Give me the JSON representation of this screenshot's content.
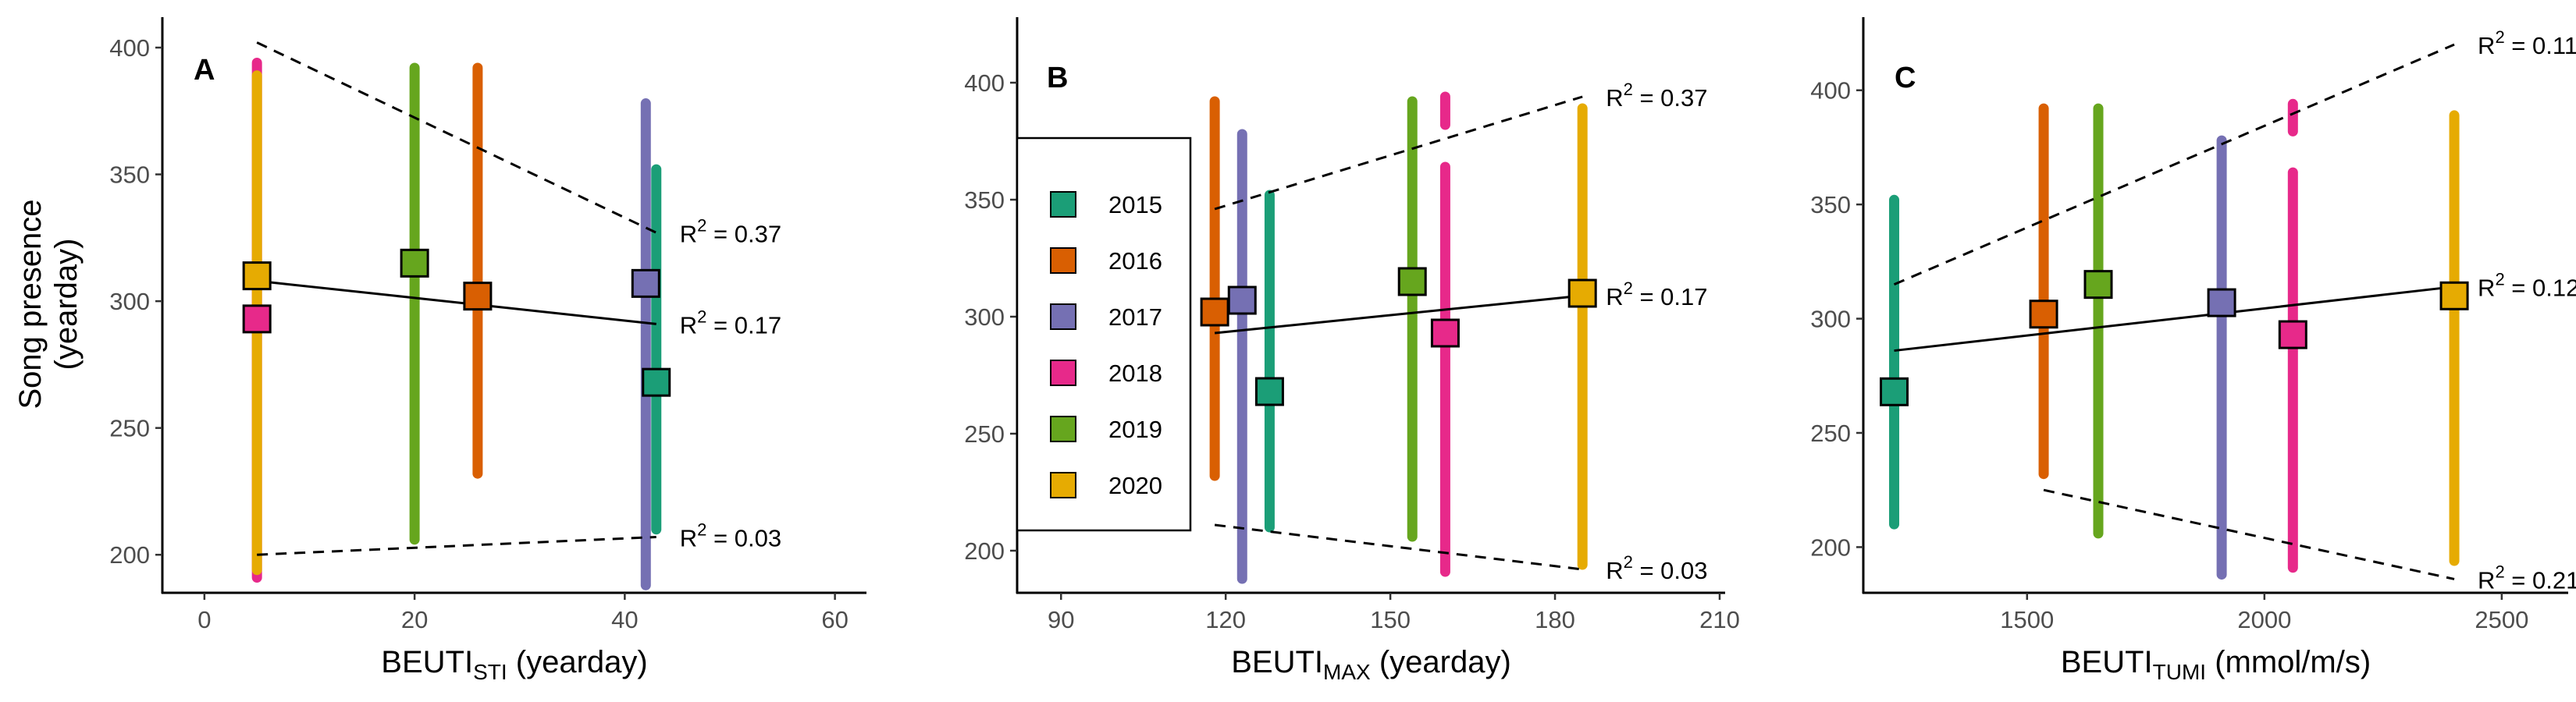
{
  "colors": {
    "2015": "#1b9e77",
    "2016": "#d95f02",
    "2017": "#7570b3",
    "2018": "#e7298a",
    "2019": "#66a61e",
    "2020": "#e6ab02"
  },
  "y_axis_title": [
    "Song presence",
    "(yearday)"
  ],
  "legend": {
    "placement": "inside panel B, left",
    "entries": [
      "2015",
      "2016",
      "2017",
      "2018",
      "2019",
      "2020"
    ]
  },
  "chart_data": [
    {
      "panel": "A",
      "type": "scatter",
      "xlabel": {
        "main": "BEUTI",
        "sub": "STI",
        "tail": " (yearday)"
      },
      "ylabel": "Song presence (yearday)",
      "xlim": [
        -4,
        63
      ],
      "ylim": [
        185,
        412
      ],
      "xticks": [
        0,
        20,
        40,
        60
      ],
      "yticks": [
        200,
        250,
        300,
        350,
        400
      ],
      "grid": false,
      "points": [
        {
          "year": "2015",
          "x": 43,
          "y": 268,
          "range": [
            [
              210,
              352
            ]
          ]
        },
        {
          "year": "2016",
          "x": 26,
          "y": 302,
          "range": [
            [
              232,
              392
            ]
          ]
        },
        {
          "year": "2017",
          "x": 42,
          "y": 307,
          "range": [
            [
              188,
              378
            ]
          ]
        },
        {
          "year": "2018",
          "x": 5,
          "y": 293,
          "range": [
            [
              191,
              394
            ]
          ]
        },
        {
          "year": "2019",
          "x": 20,
          "y": 315,
          "range": [
            [
              206,
              392
            ]
          ]
        },
        {
          "year": "2020",
          "x": 5,
          "y": 310,
          "range": [
            [
              194,
              389
            ]
          ]
        }
      ],
      "fits": [
        {
          "style": "solid",
          "x": [
            5,
            43
          ],
          "y": [
            308,
            291
          ],
          "r2": "0.17"
        },
        {
          "style": "dashed",
          "x": [
            5,
            43
          ],
          "y": [
            402,
            327
          ],
          "r2": "0.37"
        },
        {
          "style": "dashed",
          "x": [
            5,
            43
          ],
          "y": [
            200,
            207
          ],
          "r2": "0.03"
        }
      ]
    },
    {
      "panel": "B",
      "type": "scatter",
      "xlabel": {
        "main": "BEUTI",
        "sub": "MAX",
        "tail": " (yearday)"
      },
      "ylabel": "Song presence (yearday)",
      "xlim": [
        82,
        211
      ],
      "ylim": [
        182,
        428
      ],
      "xticks": [
        90,
        120,
        150,
        180,
        210
      ],
      "yticks": [
        200,
        250,
        300,
        350,
        400
      ],
      "grid": false,
      "points": [
        {
          "year": "2015",
          "x": 128,
          "y": 268,
          "range": [
            [
              210,
              352
            ]
          ]
        },
        {
          "year": "2016",
          "x": 118,
          "y": 302,
          "range": [
            [
              232,
              392
            ]
          ]
        },
        {
          "year": "2017",
          "x": 123,
          "y": 307,
          "range": [
            [
              188,
              378
            ]
          ]
        },
        {
          "year": "2018",
          "x": 160,
          "y": 293,
          "range": [
            [
              191,
              364
            ],
            [
              382,
              394
            ]
          ]
        },
        {
          "year": "2019",
          "x": 154,
          "y": 315,
          "range": [
            [
              206,
              392
            ]
          ]
        },
        {
          "year": "2020",
          "x": 185,
          "y": 310,
          "range": [
            [
              194,
              389
            ]
          ]
        }
      ],
      "fits": [
        {
          "style": "solid",
          "x": [
            118,
            185
          ],
          "y": [
            293,
            309
          ],
          "r2": "0.17"
        },
        {
          "style": "dashed",
          "x": [
            118,
            185
          ],
          "y": [
            346,
            394
          ],
          "r2": "0.37"
        },
        {
          "style": "dashed",
          "x": [
            118,
            185
          ],
          "y": [
            211,
            192
          ],
          "r2": "0.03"
        }
      ]
    },
    {
      "panel": "C",
      "type": "scatter",
      "xlabel": {
        "main": "BEUTI",
        "sub": "TUMI",
        "tail": " (mmol/m/s)"
      },
      "ylabel": "Song presence (yearday)",
      "xlim": [
        1155,
        2640
      ],
      "ylim": [
        180,
        432
      ],
      "xticks": [
        1500,
        2000,
        2500
      ],
      "yticks": [
        200,
        250,
        300,
        350,
        400
      ],
      "grid": false,
      "points": [
        {
          "year": "2015",
          "x": 1220,
          "y": 268,
          "range": [
            [
              210,
              352
            ]
          ]
        },
        {
          "year": "2016",
          "x": 1535,
          "y": 302,
          "range": [
            [
              232,
              392
            ]
          ]
        },
        {
          "year": "2017",
          "x": 1910,
          "y": 307,
          "range": [
            [
              188,
              378
            ]
          ]
        },
        {
          "year": "2018",
          "x": 2060,
          "y": 293,
          "range": [
            [
              191,
              364
            ],
            [
              382,
              394
            ]
          ]
        },
        {
          "year": "2019",
          "x": 1650,
          "y": 315,
          "range": [
            [
              206,
              392
            ]
          ]
        },
        {
          "year": "2020",
          "x": 2400,
          "y": 310,
          "range": [
            [
              194,
              389
            ]
          ]
        }
      ],
      "fits": [
        {
          "style": "solid",
          "x": [
            1220,
            2400
          ],
          "y": [
            286,
            314
          ],
          "r2": "0.12"
        },
        {
          "style": "dashed",
          "x": [
            1220,
            2400
          ],
          "y": [
            315,
            420
          ],
          "r2": "0.11"
        },
        {
          "style": "dashed",
          "x": [
            1535,
            2400
          ],
          "y": [
            225,
            186
          ],
          "r2": "0.21"
        }
      ]
    }
  ]
}
